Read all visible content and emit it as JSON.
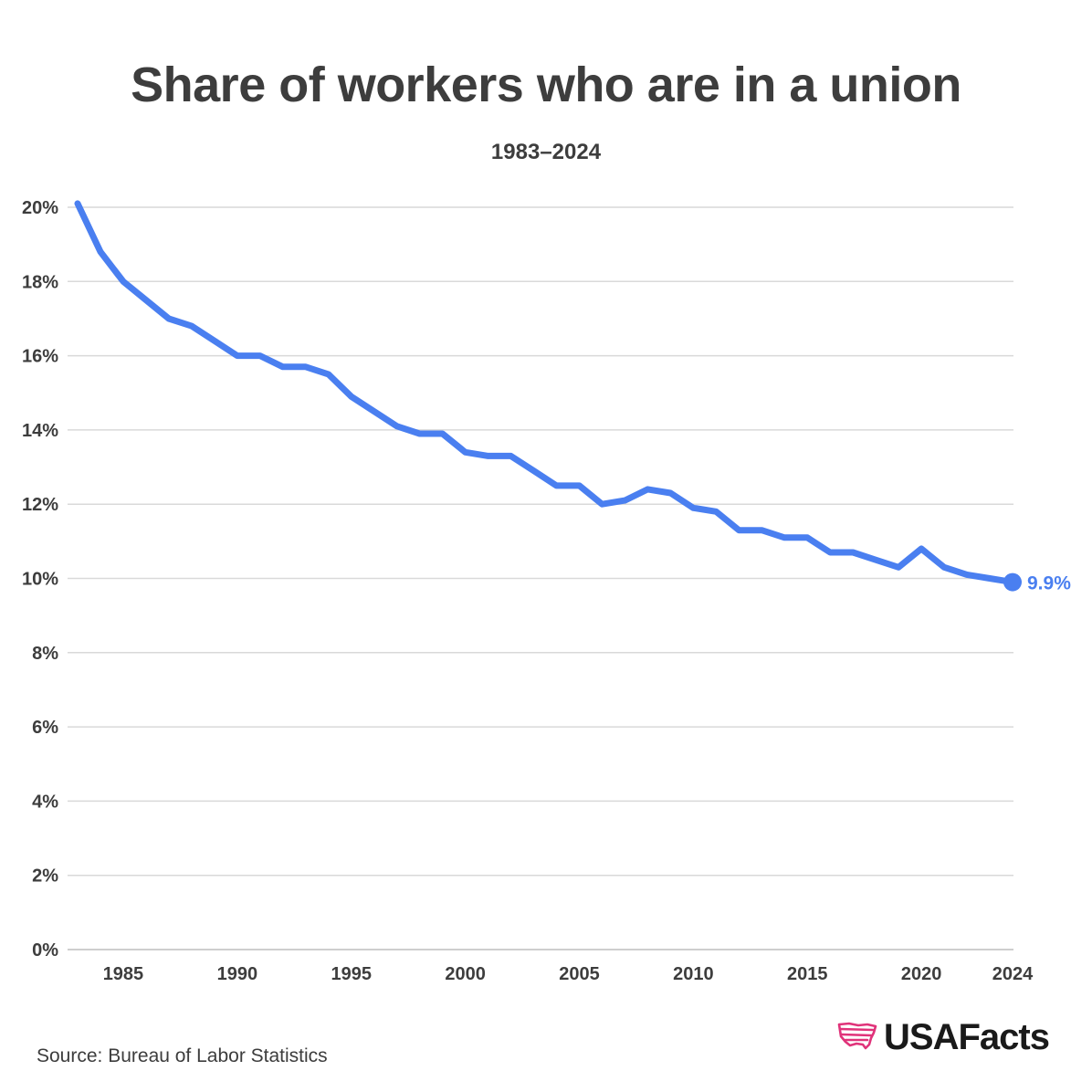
{
  "header": {
    "title": "Share of workers who are in a union",
    "subtitle": "1983–2024"
  },
  "footer": {
    "source": "Source: Bureau of Labor Statistics",
    "brand": "USAFacts",
    "logo_icon": "usa-flag-map-icon",
    "logo_color": "#e0337a"
  },
  "chart_data": {
    "type": "line",
    "title": "Share of workers who are in a union",
    "subtitle": "1983–2024",
    "xlabel": "",
    "ylabel": "",
    "xlim": [
      1983,
      2024
    ],
    "ylim": [
      0,
      20
    ],
    "grid": true,
    "line_color": "#4a7ff0",
    "x_ticks": [
      1985,
      1990,
      1995,
      2000,
      2005,
      2010,
      2015,
      2020,
      2024
    ],
    "x_tick_labels": [
      "1985",
      "1990",
      "1995",
      "2000",
      "2005",
      "2010",
      "2015",
      "2020",
      "2024"
    ],
    "y_ticks": [
      0,
      2,
      4,
      6,
      8,
      10,
      12,
      14,
      16,
      18,
      20
    ],
    "y_tick_labels": [
      "0%",
      "2%",
      "4%",
      "6%",
      "8%",
      "10%",
      "12%",
      "14%",
      "16%",
      "18%",
      "20%"
    ],
    "x": [
      1983,
      1984,
      1985,
      1986,
      1987,
      1988,
      1989,
      1990,
      1991,
      1992,
      1993,
      1994,
      1995,
      1996,
      1997,
      1998,
      1999,
      2000,
      2001,
      2002,
      2003,
      2004,
      2005,
      2006,
      2007,
      2008,
      2009,
      2010,
      2011,
      2012,
      2013,
      2014,
      2015,
      2016,
      2017,
      2018,
      2019,
      2020,
      2021,
      2022,
      2023,
      2024
    ],
    "values": [
      20.1,
      18.8,
      18.0,
      17.5,
      17.0,
      16.8,
      16.4,
      16.0,
      16.0,
      15.7,
      15.7,
      15.5,
      14.9,
      14.5,
      14.1,
      13.9,
      13.9,
      13.4,
      13.3,
      13.3,
      12.9,
      12.5,
      12.5,
      12.0,
      12.1,
      12.4,
      12.3,
      11.9,
      11.8,
      11.3,
      11.3,
      11.1,
      11.1,
      10.7,
      10.7,
      10.5,
      10.3,
      10.8,
      10.3,
      10.1,
      10.0,
      9.9
    ],
    "end_label": "9.9%"
  }
}
